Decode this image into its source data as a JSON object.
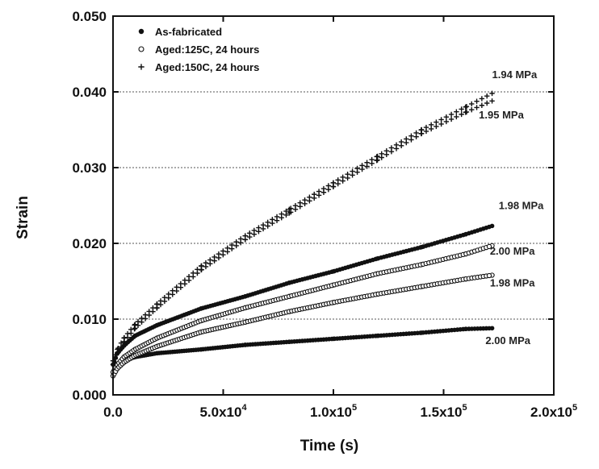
{
  "chart_data": {
    "type": "scatter",
    "title": "",
    "xlabel": "Time  (s)",
    "ylabel": "Strain",
    "xlim": [
      0,
      200000
    ],
    "ylim": [
      0,
      0.05
    ],
    "grid": "horizontal dotted",
    "legend_position": "top-left",
    "x_ticks": [
      {
        "value": 0,
        "base": "0.0",
        "exp": ""
      },
      {
        "value": 50000,
        "base": "5.0x10",
        "exp": "4"
      },
      {
        "value": 100000,
        "base": "1.0x10",
        "exp": "5"
      },
      {
        "value": 150000,
        "base": "1.5x10",
        "exp": "5"
      },
      {
        "value": 200000,
        "base": "2.0x10",
        "exp": "5"
      }
    ],
    "y_ticks": [
      {
        "value": 0,
        "label": "0.000"
      },
      {
        "value": 0.01,
        "label": "0.010"
      },
      {
        "value": 0.02,
        "label": "0.020"
      },
      {
        "value": 0.03,
        "label": "0.030"
      },
      {
        "value": 0.04,
        "label": "0.040"
      },
      {
        "value": 0.05,
        "label": "0.050"
      }
    ],
    "legend": [
      {
        "label": "As-fabricated",
        "marker": "filled-circle"
      },
      {
        "label": "Aged:125C, 24 hours",
        "marker": "open-circle"
      },
      {
        "label": "Aged:150C, 24 hours",
        "marker": "plus"
      }
    ],
    "series": [
      {
        "name": "As-fabricated",
        "marker": "filled-circle",
        "stress": "2.00 MPa",
        "x": [
          0,
          2000,
          5000,
          10000,
          20000,
          40000,
          60000,
          80000,
          100000,
          120000,
          140000,
          160000,
          172000
        ],
        "y": [
          0.003,
          0.0038,
          0.0045,
          0.005,
          0.0055,
          0.006,
          0.0066,
          0.007,
          0.0074,
          0.0078,
          0.0082,
          0.0087,
          0.0088
        ]
      },
      {
        "name": "As-fabricated",
        "marker": "filled-circle",
        "stress": "1.98 MPa",
        "x": [
          0,
          2000,
          5000,
          10000,
          20000,
          40000,
          60000,
          80000,
          100000,
          120000,
          140000,
          160000,
          172000
        ],
        "y": [
          0.004,
          0.0055,
          0.0065,
          0.0078,
          0.0092,
          0.0114,
          0.013,
          0.0148,
          0.0163,
          0.018,
          0.0195,
          0.0212,
          0.0223
        ]
      },
      {
        "name": "Aged:125C, 24 hours",
        "marker": "open-circle",
        "stress": "2.00 MPa",
        "x": [
          0,
          2000,
          5000,
          10000,
          20000,
          40000,
          60000,
          80000,
          100000,
          120000,
          140000,
          160000,
          172000
        ],
        "y": [
          0.003,
          0.004,
          0.005,
          0.006,
          0.0075,
          0.0098,
          0.0115,
          0.013,
          0.0145,
          0.016,
          0.0172,
          0.0186,
          0.0197
        ]
      },
      {
        "name": "Aged:125C, 24 hours",
        "marker": "open-circle",
        "stress": "1.98 MPa",
        "x": [
          0,
          2000,
          5000,
          10000,
          20000,
          40000,
          60000,
          80000,
          100000,
          120000,
          140000,
          160000,
          172000
        ],
        "y": [
          0.0025,
          0.0035,
          0.0043,
          0.0052,
          0.0064,
          0.0083,
          0.0096,
          0.011,
          0.0122,
          0.0133,
          0.0143,
          0.0153,
          0.0158
        ]
      },
      {
        "name": "Aged:150C, 24 hours",
        "marker": "plus",
        "stress": "1.95 MPa",
        "x": [
          0,
          2000,
          5000,
          10000,
          20000,
          40000,
          60000,
          80000,
          100000,
          120000,
          140000,
          160000,
          172000
        ],
        "y": [
          0.004,
          0.0055,
          0.007,
          0.0088,
          0.0115,
          0.0165,
          0.0205,
          0.024,
          0.0275,
          0.031,
          0.0345,
          0.0373,
          0.0388
        ]
      },
      {
        "name": "Aged:150C, 24 hours",
        "marker": "plus",
        "stress": "1.94 MPa",
        "x": [
          0,
          2000,
          5000,
          10000,
          20000,
          40000,
          60000,
          80000,
          100000,
          120000,
          140000,
          160000,
          172000
        ],
        "y": [
          0.0045,
          0.006,
          0.0075,
          0.0093,
          0.012,
          0.017,
          0.021,
          0.0245,
          0.028,
          0.0315,
          0.035,
          0.038,
          0.0398
        ]
      }
    ],
    "annotations": [
      {
        "text": "1.94 MPa",
        "x": 172000,
        "y": 0.0418
      },
      {
        "text": "1.95 MPa",
        "x": 166000,
        "y": 0.0365
      },
      {
        "text": "1.98 MPa",
        "x": 175000,
        "y": 0.0245
      },
      {
        "text": "2.00 MPa",
        "x": 171000,
        "y": 0.0185
      },
      {
        "text": "1.98 MPa",
        "x": 171000,
        "y": 0.0143
      },
      {
        "text": "2.00 MPa",
        "x": 169000,
        "y": 0.0067
      }
    ]
  }
}
